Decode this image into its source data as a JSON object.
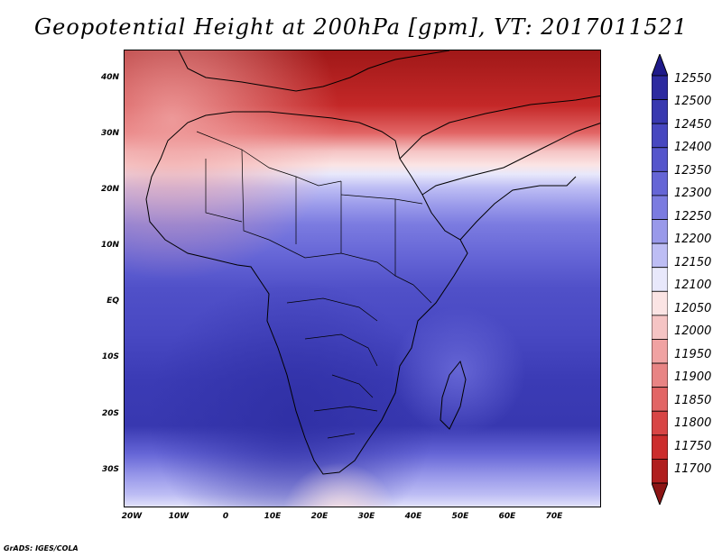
{
  "title": "Geopotential Height at 200hPa [gpm], VT: 2017011521",
  "credit": "GrADS: IGES/COLA",
  "map": {
    "lat_labels": [
      "40N",
      "30N",
      "20N",
      "10N",
      "EQ",
      "10S",
      "20S",
      "30S"
    ],
    "lon_labels": [
      "20W",
      "10W",
      "0",
      "10E",
      "20E",
      "30E",
      "40E",
      "50E",
      "60E",
      "70E"
    ]
  },
  "colorbar": {
    "levels": [
      "12550",
      "12500",
      "12450",
      "12400",
      "12350",
      "12300",
      "12250",
      "12200",
      "12150",
      "12100",
      "12050",
      "12000",
      "11950",
      "11900",
      "11850",
      "11800",
      "11750",
      "11700"
    ],
    "colors": [
      "#1f1a8a",
      "#2d2aa0",
      "#3838b0",
      "#4747c0",
      "#5555cc",
      "#6565d6",
      "#7b7be0",
      "#9999ea",
      "#bdbdf4",
      "#e8e8fb",
      "#fbe4e4",
      "#f5c4c4",
      "#f0a2a2",
      "#e88484",
      "#e26565",
      "#d84545",
      "#cc2d2d",
      "#b01e1e",
      "#8c1515"
    ]
  }
}
